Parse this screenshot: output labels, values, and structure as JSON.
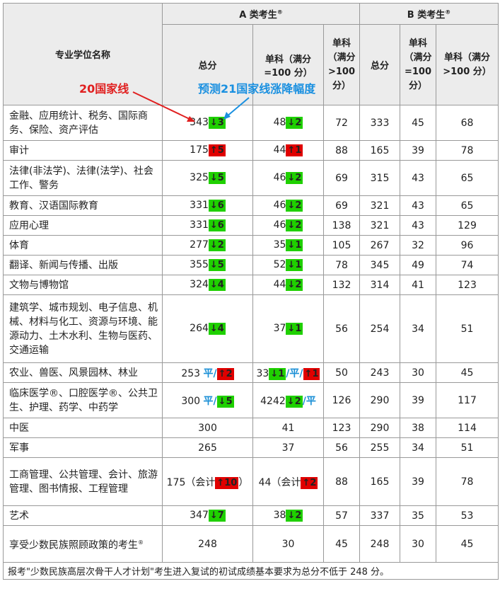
{
  "header": {
    "name_col": "专业学位名称",
    "group_a": "A 类考生",
    "group_a_sup": "®",
    "group_b": "B 类考生",
    "group_b_sup": "®",
    "a_total": "总分",
    "a_single100": "单科（满分=100 分）",
    "a_single_gt100": "单科（满分>100 分）",
    "b_total": "总分",
    "b_single100": "单科（满分=100 分）",
    "b_single_gt100": "单科（满分>100 分）"
  },
  "annotations": {
    "national_line": "20国家线",
    "forecast": "预测21国家线涨降幅度"
  },
  "rows": [
    {
      "name": "金融、应用统计、税务、国际商务、保险、资产评估",
      "a_total": "343",
      "a_total_chg": "3",
      "a_total_dir": "down",
      "a_s100": "48",
      "a_s100_chg": "2",
      "a_s100_dir": "down",
      "a_sgt": "72",
      "b_total": "333",
      "b_s100": "45",
      "b_sgt": "68"
    },
    {
      "name": "审计",
      "a_total": "175",
      "a_total_chg": "5",
      "a_total_dir": "up",
      "a_s100": "44",
      "a_s100_chg": "1",
      "a_s100_dir": "up",
      "a_sgt": "88",
      "b_total": "165",
      "b_s100": "39",
      "b_sgt": "78"
    },
    {
      "name": "法律(非法学)、法律(法学)、社会工作、警务",
      "a_total": "325",
      "a_total_chg": "5",
      "a_total_dir": "down",
      "a_s100": "46",
      "a_s100_chg": "2",
      "a_s100_dir": "down",
      "a_sgt": "69",
      "b_total": "315",
      "b_s100": "43",
      "b_sgt": "65"
    },
    {
      "name": "教育、汉语国际教育",
      "a_total": "331",
      "a_total_chg": "6",
      "a_total_dir": "down",
      "a_s100": "46",
      "a_s100_chg": "2",
      "a_s100_dir": "down",
      "a_sgt": "69",
      "b_total": "321",
      "b_s100": "43",
      "b_sgt": "65"
    },
    {
      "name": "应用心理",
      "a_total": "331",
      "a_total_chg": "6",
      "a_total_dir": "down",
      "a_s100": "46",
      "a_s100_chg": "2",
      "a_s100_dir": "down",
      "a_sgt": "138",
      "b_total": "321",
      "b_s100": "43",
      "b_sgt": "129"
    },
    {
      "name": "体育",
      "a_total": "277",
      "a_total_chg": "2",
      "a_total_dir": "down",
      "a_s100": "35",
      "a_s100_chg": "1",
      "a_s100_dir": "down",
      "a_sgt": "105",
      "b_total": "267",
      "b_s100": "32",
      "b_sgt": "96"
    },
    {
      "name": "翻译、新闻与传播、出版",
      "a_total": "355",
      "a_total_chg": "5",
      "a_total_dir": "down",
      "a_s100": "52",
      "a_s100_chg": "1",
      "a_s100_dir": "down",
      "a_sgt": "78",
      "b_total": "345",
      "b_s100": "49",
      "b_sgt": "74"
    },
    {
      "name": "文物与博物馆",
      "a_total": "324",
      "a_total_chg": "4",
      "a_total_dir": "down",
      "a_s100": "44",
      "a_s100_chg": "2",
      "a_s100_dir": "down",
      "a_sgt": "132",
      "b_total": "314",
      "b_s100": "41",
      "b_sgt": "123"
    },
    {
      "name": "建筑学、城市规划、电子信息、机械、材料与化工、资源与环境、能源动力、土木水利、生物与医药、交通运输",
      "a_total": "264",
      "a_total_chg": "4",
      "a_total_dir": "down",
      "a_s100": "37",
      "a_s100_chg": "1",
      "a_s100_dir": "down",
      "a_sgt": "56",
      "b_total": "254",
      "b_s100": "34",
      "b_sgt": "51"
    }
  ],
  "row_agri": {
    "name": "农业、兽医、风景园林、林业",
    "a_total": "253",
    "flat": "平",
    "a_total_chg": "2",
    "a_s100": "33",
    "a_s100_chg1": "1",
    "a_s100_chg2": "1",
    "a_sgt": "50",
    "b_total": "243",
    "b_s100": "30",
    "b_sgt": "45"
  },
  "row_med": {
    "name": "临床医学®、口腔医学®、公共卫生、护理、药学、中药学",
    "a_total": "300",
    "flat": "平",
    "a_total_chg": "5",
    "a_s100": "4242",
    "a_s100_chg": "2",
    "a_sgt": "126",
    "b_total": "290",
    "b_s100": "39",
    "b_sgt": "117"
  },
  "rows_plain": [
    {
      "name": "中医",
      "a_total": "300",
      "a_s100": "41",
      "a_sgt": "123",
      "b_total": "290",
      "b_s100": "38",
      "b_sgt": "114"
    },
    {
      "name": "军事",
      "a_total": "265",
      "a_s100": "37",
      "a_sgt": "56",
      "b_total": "255",
      "b_s100": "34",
      "b_sgt": "51"
    }
  ],
  "row_mgmt": {
    "name": "工商管理、公共管理、会计、旅游管理、图书情报、工程管理",
    "a_total": "175（会计",
    "a_total_chg": "10",
    "a_total_close": "）",
    "a_s100": "44（会计",
    "a_s100_chg": "2",
    "a_sgt": "88",
    "b_total": "165",
    "b_s100": "39",
    "b_sgt": "78"
  },
  "row_art": {
    "name": "艺术",
    "a_total": "347",
    "a_total_chg": "7",
    "a_s100": "38",
    "a_s100_chg": "2",
    "a_sgt": "57",
    "b_total": "337",
    "b_s100": "35",
    "b_sgt": "53"
  },
  "row_minority": {
    "name": "享受少数民族照顾政策的考生",
    "name_sup": "®",
    "a_total": "248",
    "a_s100": "30",
    "a_sgt": "45",
    "b_total": "248",
    "b_s100": "30",
    "b_sgt": "45"
  },
  "footnote": "报考\"少数民族高层次骨干人才计划\"考生进入复试的初试成绩基本要求为总分不低于 248 分。",
  "colors": {
    "up": "#e00000",
    "down": "#1fd000",
    "flat": "#1a8fd6",
    "anno_red": "#e02020",
    "anno_blue": "#1a90e0"
  }
}
